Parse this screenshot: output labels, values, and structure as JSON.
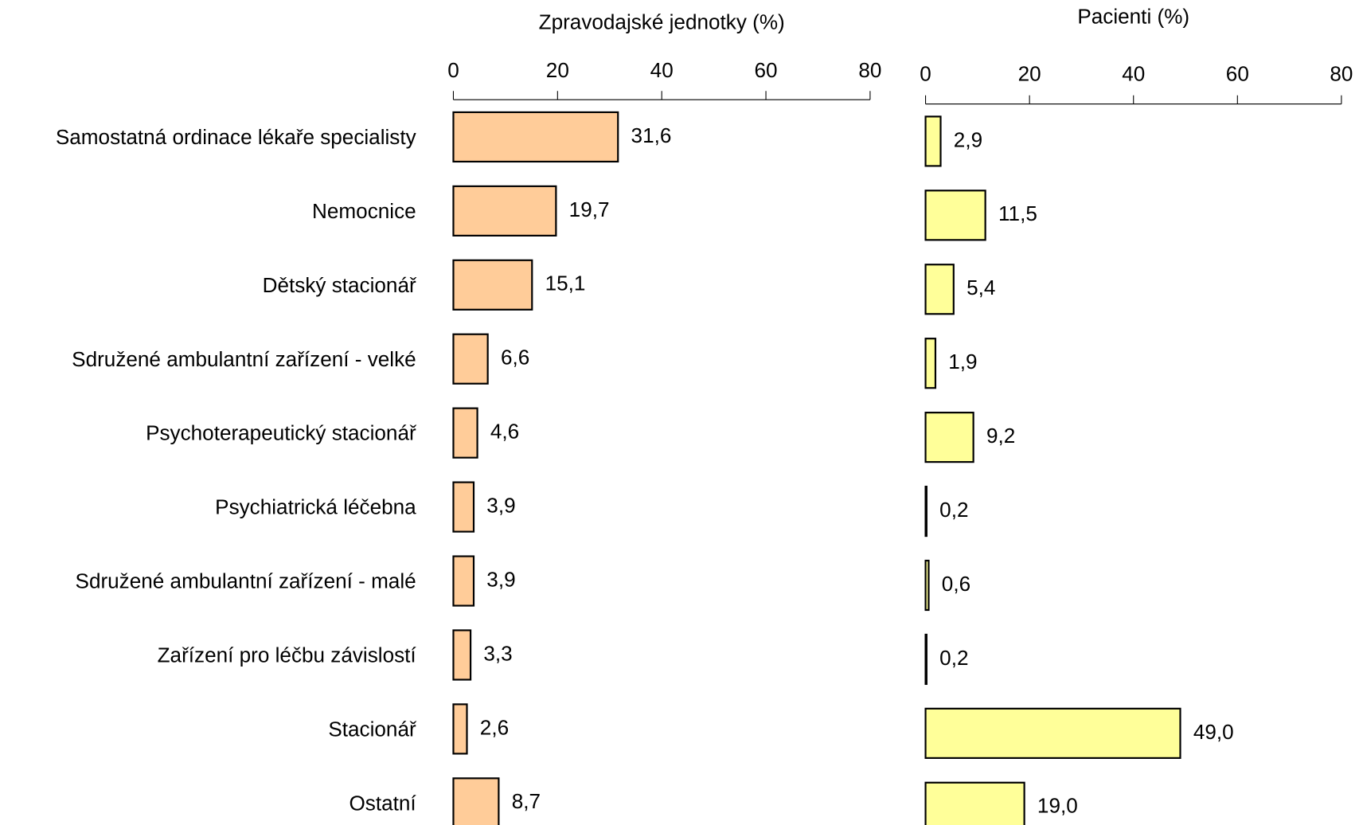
{
  "chart_data": [
    {
      "type": "hbar",
      "title": "Zpravodajské jednotky (%)",
      "categories": [
        "Samostatná ordinace lékaře specialisty",
        "Nemocnice",
        "Dětský stacionář",
        "Sdružené ambulantní zařízení - velké",
        "Psychoterapeutický stacionář",
        "Psychiatrická léčebna",
        "Sdružené ambulantní zařízení - malé",
        "Zařízení pro léčbu závislostí",
        "Stacionář",
        "Ostatní"
      ],
      "values": [
        31.6,
        19.7,
        15.1,
        6.6,
        4.6,
        3.9,
        3.9,
        3.3,
        2.6,
        8.7
      ],
      "value_labels": [
        "31,6",
        "19,7",
        "15,1",
        "6,6",
        "4,6",
        "3,9",
        "3,9",
        "3,3",
        "2,6",
        "8,7"
      ],
      "color": "#ffcc99",
      "xlim": [
        0,
        80
      ],
      "xticks": [
        0,
        20,
        40,
        60,
        80
      ]
    },
    {
      "type": "hbar",
      "title": "Pacienti (%)",
      "values": [
        2.9,
        11.5,
        5.4,
        1.9,
        9.2,
        0.2,
        0.6,
        0.2,
        49.0,
        19.0
      ],
      "value_labels": [
        "2,9",
        "11,5",
        "5,4",
        "1,9",
        "9,2",
        "0,2",
        "0,6",
        "0,2",
        "49,0",
        "19,0"
      ],
      "color": "#ffff99",
      "xlim": [
        0,
        80
      ],
      "xticks": [
        0,
        20,
        40,
        60,
        80
      ]
    }
  ]
}
